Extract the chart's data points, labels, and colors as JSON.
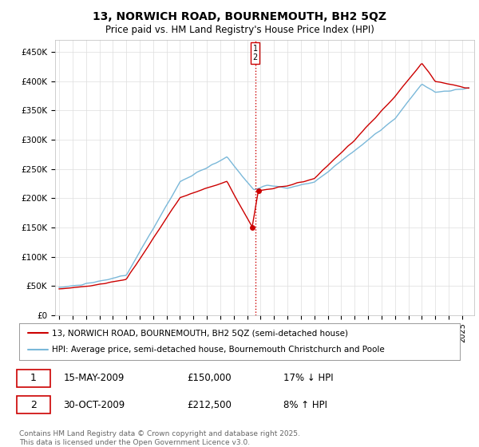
{
  "title": "13, NORWICH ROAD, BOURNEMOUTH, BH2 5QZ",
  "subtitle": "Price paid vs. HM Land Registry's House Price Index (HPI)",
  "ylim": [
    0,
    470000
  ],
  "yticks": [
    0,
    50000,
    100000,
    150000,
    200000,
    250000,
    300000,
    350000,
    400000,
    450000
  ],
  "ytick_labels": [
    "£0",
    "£50K",
    "£100K",
    "£150K",
    "£200K",
    "£250K",
    "£300K",
    "£350K",
    "£400K",
    "£450K"
  ],
  "hpi_color": "#7ab8d9",
  "price_color": "#cc0000",
  "marker_color": "#cc0000",
  "vline_color": "#cc0000",
  "transaction1_date": "15-MAY-2009",
  "transaction1_price": 150000,
  "transaction1_hpi_diff": "17% ↓ HPI",
  "transaction2_date": "30-OCT-2009",
  "transaction2_price": 212500,
  "transaction2_hpi_diff": "8% ↑ HPI",
  "legend_line1": "13, NORWICH ROAD, BOURNEMOUTH, BH2 5QZ (semi-detached house)",
  "legend_line2": "HPI: Average price, semi-detached house, Bournemouth Christchurch and Poole",
  "footnote": "Contains HM Land Registry data © Crown copyright and database right 2025.\nThis data is licensed under the Open Government Licence v3.0.",
  "background_color": "#ffffff",
  "grid_color": "#dddddd",
  "xlim_left": 1994.7,
  "xlim_right": 2025.9,
  "t1_year": 2009.37,
  "t2_year": 2009.83,
  "vline_x": 2009.6
}
